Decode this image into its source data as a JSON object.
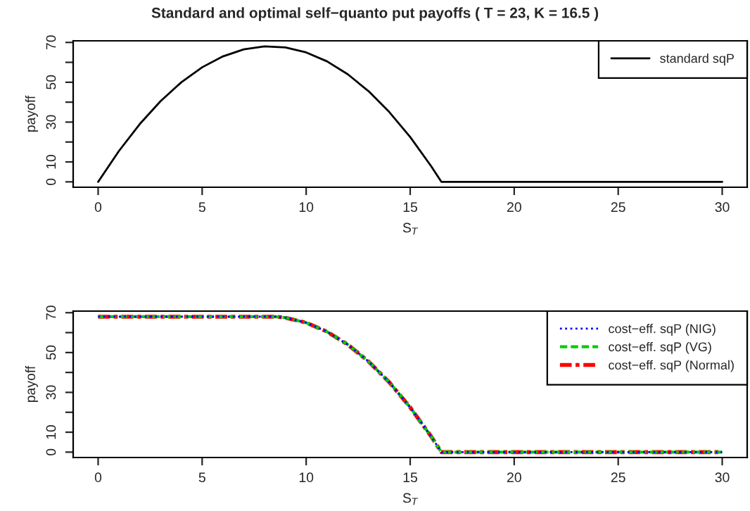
{
  "chart_data": [
    {
      "type": "line",
      "title": "Standard and optimal self−quanto put payoffs ( T = 23, K = 16.5 )",
      "xlabel": "S$_{T}$",
      "ylabel": "payoff",
      "xlim": [
        -1.2,
        31.2
      ],
      "xticks": [
        0,
        5,
        10,
        15,
        20,
        25,
        30
      ],
      "ylim": [
        -2.7,
        70.8
      ],
      "yticks": [
        0,
        10,
        {
          "value": 20,
          "label": null
        },
        30,
        {
          "value": 40,
          "label": null
        },
        50,
        {
          "value": 60,
          "label": null
        },
        70
      ],
      "grid": false,
      "legend": "top right",
      "marker": "none",
      "series": [
        {
          "name": "standard sqP",
          "color": "#000000",
          "line_style": "solid",
          "x": [
            0,
            1,
            2,
            3,
            4,
            5,
            6,
            7,
            8,
            9,
            10,
            11,
            12,
            13,
            14,
            15,
            16,
            16.5,
            30
          ],
          "values": [
            0,
            15.5,
            29,
            40.5,
            50,
            57.5,
            63,
            66.5,
            68,
            67.5,
            65,
            60.5,
            54,
            45.5,
            35,
            22.5,
            8,
            0,
            0
          ]
        }
      ]
    },
    {
      "type": "line",
      "xlabel": "S$_{T}$",
      "ylabel": "payoff",
      "xlim": [
        -1.2,
        31.2
      ],
      "xticks": [
        0,
        5,
        10,
        15,
        20,
        25,
        30
      ],
      "ylim": [
        -2.7,
        70.8
      ],
      "yticks": [
        0,
        10,
        {
          "value": 20,
          "label": null
        },
        30,
        {
          "value": 40,
          "label": null
        },
        50,
        {
          "value": 60,
          "label": null
        },
        70
      ],
      "grid": false,
      "legend": "top right",
      "marker": "none",
      "series": [
        {
          "name": "cost−eff. sqP (NIG)",
          "color": "#0000ff",
          "line_style": "dotted",
          "x": [
            0,
            8.5,
            9,
            10,
            11,
            12,
            13,
            14,
            15,
            16,
            16.5,
            30
          ],
          "values": [
            68,
            68,
            67.5,
            65,
            60.5,
            54,
            45.5,
            35,
            22.5,
            8,
            0,
            0
          ]
        },
        {
          "name": "cost−eff. sqP (VG)",
          "color": "#00cd00",
          "line_style": "dashed",
          "x": [
            0,
            8.5,
            9,
            10,
            11,
            12,
            13,
            14,
            15,
            16,
            16.5,
            30
          ],
          "values": [
            68,
            68,
            67.5,
            65,
            60.5,
            54,
            45.5,
            35,
            22.5,
            8,
            0,
            0
          ]
        },
        {
          "name": "cost−eff. sqP (Normal)",
          "color": "#ff0000",
          "line_style": "dashdot",
          "x": [
            0,
            8.5,
            9,
            10,
            11,
            12,
            13,
            14,
            15,
            16,
            16.5,
            30
          ],
          "values": [
            68,
            68,
            67.5,
            65,
            60.5,
            54,
            45.5,
            35,
            22.5,
            8,
            0,
            0
          ]
        }
      ]
    }
  ]
}
